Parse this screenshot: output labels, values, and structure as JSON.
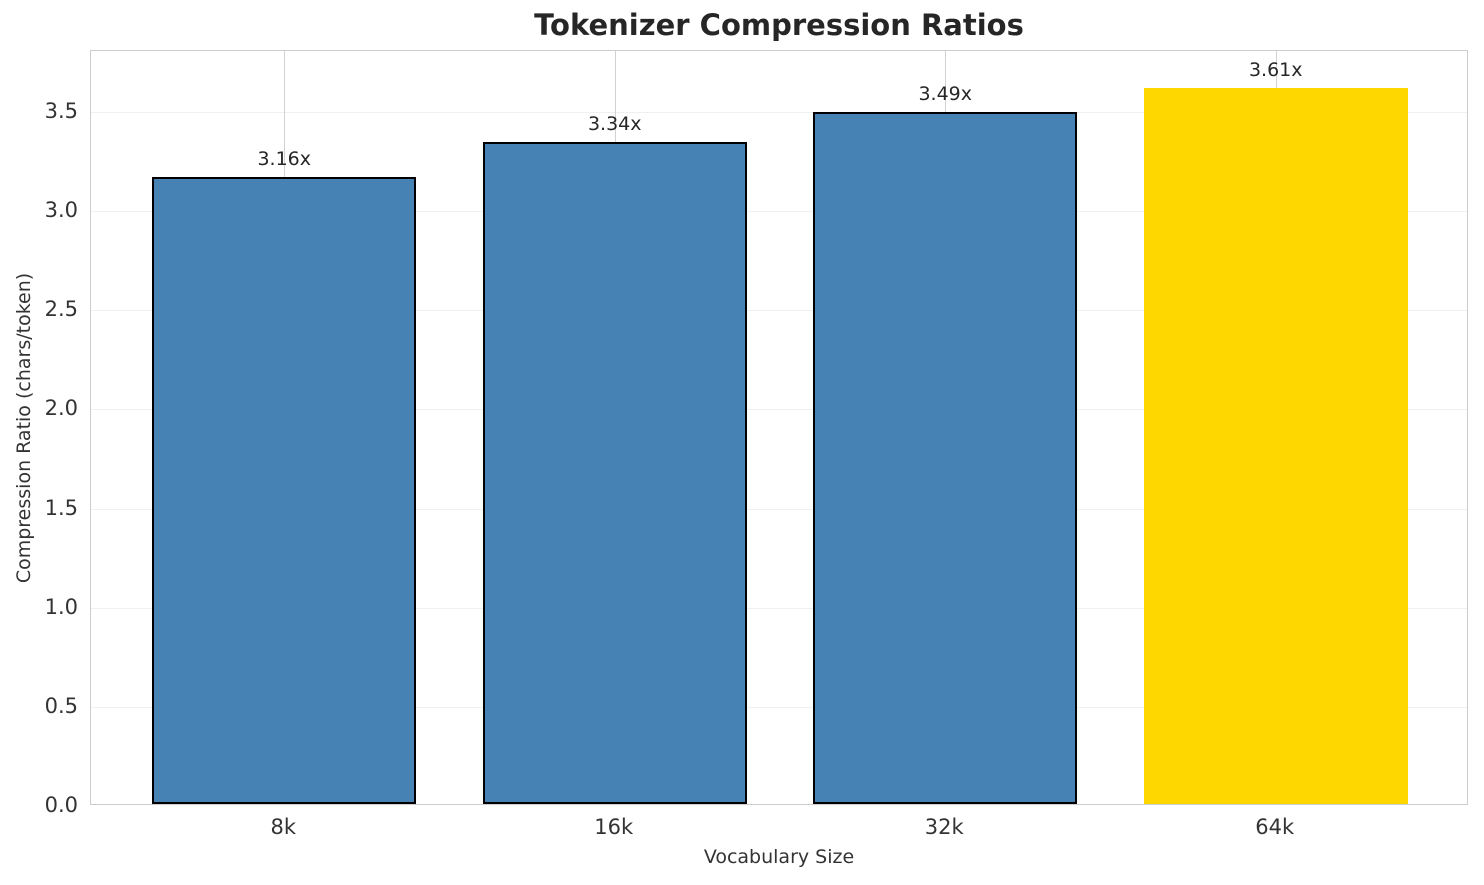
{
  "chart_data": {
    "type": "bar",
    "title": "Tokenizer Compression Ratios",
    "xlabel": "Vocabulary Size",
    "ylabel": "Compression Ratio (chars/token)",
    "categories": [
      "8k",
      "16k",
      "32k",
      "64k"
    ],
    "values": [
      3.16,
      3.34,
      3.49,
      3.61
    ],
    "bar_labels": [
      "3.16x",
      "3.34x",
      "3.49x",
      "3.61x"
    ],
    "bar_colors": [
      "#4682B4",
      "#4682B4",
      "#4682B4",
      "#FFD700"
    ],
    "bar_edge_colors": [
      "#000000",
      "#000000",
      "#000000",
      "#FFD700"
    ],
    "yticks": [
      0.0,
      0.5,
      1.0,
      1.5,
      2.0,
      2.5,
      3.0,
      3.5
    ],
    "ytick_labels": [
      "0.0",
      "0.5",
      "1.0",
      "1.5",
      "2.0",
      "2.5",
      "3.0",
      "3.5"
    ],
    "ylim": [
      0,
      3.808
    ],
    "grid": true,
    "legend": false
  },
  "colors": {
    "bar_default": "#4682B4",
    "bar_highlight": "#FFD700",
    "bar_edge": "#000000",
    "grid_horizontal": "#f0f0f0",
    "grid_vertical": "#d2d2d2",
    "spine": "#cccccc",
    "title_text": "#262626",
    "tick_text": "#333333",
    "background": "#ffffff"
  }
}
